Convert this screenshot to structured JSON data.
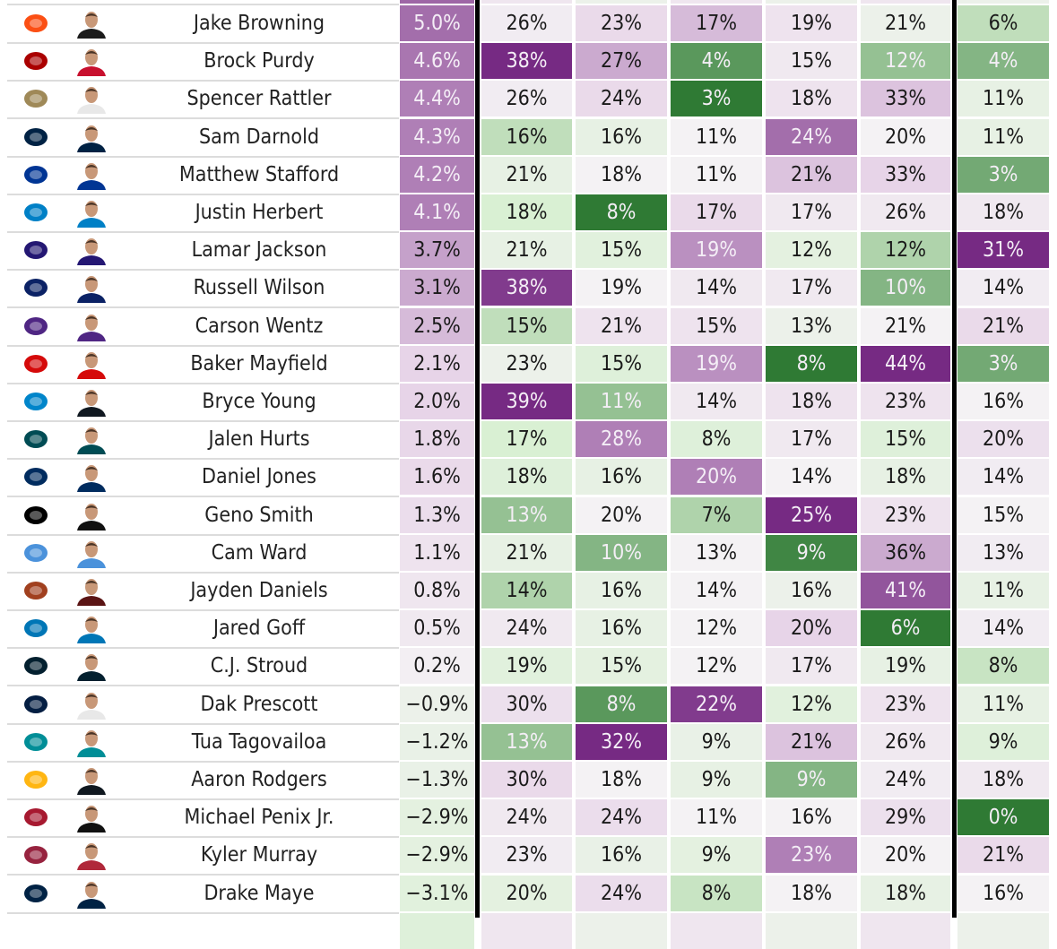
{
  "colors": {
    "purple_dark": "#762a83",
    "purple_light": "#e7d4e8",
    "neutral": "#f4f2f4",
    "green_light": "#d9f0d3",
    "green_dark": "#2f7a34"
  },
  "rows": [
    {
      "team_icon": "bengals-logo",
      "team_color": "#fb4f14",
      "jersey": "#1b1b1b",
      "name": "Jake Browning",
      "pct": "5.0%",
      "pct_level": 2.2,
      "values": [
        "26%",
        "23%",
        "17%",
        "19%",
        "21%",
        "6%"
      ],
      "levels": [
        0.2,
        0.8,
        1.3,
        0.5,
        -0.3,
        -1.3
      ]
    },
    {
      "team_icon": "49ers-logo",
      "team_color": "#aa0000",
      "jersey": "#c8102e",
      "name": "Brock Purdy",
      "pct": "4.6%",
      "pct_level": 2.1,
      "values": [
        "38%",
        "27%",
        "4%",
        "15%",
        "12%",
        "4%"
      ],
      "levels": [
        3,
        1.5,
        -2.5,
        0.3,
        -1.8,
        -2
      ]
    },
    {
      "team_icon": "saints-logo",
      "team_color": "#9f8958",
      "jersey": "#e8e8e8",
      "name": "Spencer Rattler",
      "pct": "4.4%",
      "pct_level": 2.0,
      "values": [
        "26%",
        "24%",
        "3%",
        "18%",
        "33%",
        "11%"
      ],
      "levels": [
        0.2,
        0.8,
        -3,
        0.5,
        1.2,
        -0.5
      ]
    },
    {
      "team_icon": "seahawks-logo",
      "team_color": "#002244",
      "jersey": "#002244",
      "name": "Sam Darnold",
      "pct": "4.3%",
      "pct_level": 2.0,
      "values": [
        "16%",
        "16%",
        "11%",
        "24%",
        "20%",
        "11%"
      ],
      "levels": [
        -1.3,
        -0.5,
        0,
        2.2,
        0,
        -0.5
      ]
    },
    {
      "team_icon": "rams-logo",
      "team_color": "#003594",
      "jersey": "#003594",
      "name": "Matthew Stafford",
      "pct": "4.2%",
      "pct_level": 2.0,
      "values": [
        "21%",
        "18%",
        "11%",
        "21%",
        "33%",
        "3%"
      ],
      "levels": [
        -0.5,
        0,
        0,
        1.2,
        1,
        -2.2
      ]
    },
    {
      "team_icon": "chargers-logo",
      "team_color": "#0080c6",
      "jersey": "#0080c6",
      "name": "Justin Herbert",
      "pct": "4.1%",
      "pct_level": 2.0,
      "values": [
        "18%",
        "8%",
        "17%",
        "17%",
        "26%",
        "18%"
      ],
      "levels": [
        -1,
        -3,
        0.8,
        0.3,
        0.3,
        0.3
      ]
    },
    {
      "team_icon": "ravens-logo",
      "team_color": "#241773",
      "jersey": "#241773",
      "name": "Lamar Jackson",
      "pct": "3.7%",
      "pct_level": 1.6,
      "values": [
        "21%",
        "15%",
        "19%",
        "12%",
        "12%",
        "31%"
      ],
      "levels": [
        -0.5,
        -0.7,
        1.8,
        -0.6,
        -1.5,
        3
      ]
    },
    {
      "team_icon": "giants-logo",
      "team_color": "#0b2265",
      "jersey": "#0b2265",
      "name": "Russell Wilson",
      "pct": "3.1%",
      "pct_level": 1.5,
      "values": [
        "38%",
        "19%",
        "14%",
        "17%",
        "10%",
        "14%"
      ],
      "levels": [
        2.8,
        0,
        0.3,
        0.3,
        -2,
        0.2
      ]
    },
    {
      "team_icon": "vikings-logo",
      "team_color": "#4f2683",
      "jersey": "#4f2683",
      "name": "Carson Wentz",
      "pct": "2.5%",
      "pct_level": 1.3,
      "values": [
        "15%",
        "21%",
        "15%",
        "13%",
        "21%",
        "21%"
      ],
      "levels": [
        -1.3,
        0.5,
        0.5,
        -0.3,
        0,
        0.8
      ]
    },
    {
      "team_icon": "buccaneers-logo",
      "team_color": "#d50a0a",
      "jersey": "#d50a0a",
      "name": "Baker Mayfield",
      "pct": "2.1%",
      "pct_level": 1.0,
      "values": [
        "23%",
        "15%",
        "19%",
        "8%",
        "44%",
        "3%"
      ],
      "levels": [
        -0.3,
        -0.8,
        1.8,
        -3,
        3,
        -2.2
      ]
    },
    {
      "team_icon": "panthers-logo",
      "team_color": "#0085ca",
      "jersey": "#101820",
      "name": "Bryce Young",
      "pct": "2.0%",
      "pct_level": 1.0,
      "values": [
        "39%",
        "11%",
        "14%",
        "18%",
        "23%",
        "16%"
      ],
      "levels": [
        3,
        -1.8,
        0.3,
        0.5,
        0.5,
        0
      ]
    },
    {
      "team_icon": "eagles-logo",
      "team_color": "#004c54",
      "jersey": "#004c54",
      "name": "Jalen Hurts",
      "pct": "1.8%",
      "pct_level": 0.9,
      "values": [
        "17%",
        "28%",
        "8%",
        "17%",
        "15%",
        "20%"
      ],
      "levels": [
        -1,
        2,
        -0.8,
        0.3,
        -0.8,
        0.6
      ]
    },
    {
      "team_icon": "colts-logo",
      "team_color": "#002c5f",
      "jersey": "#002c5f",
      "name": "Daniel Jones",
      "pct": "1.6%",
      "pct_level": 0.8,
      "values": [
        "18%",
        "16%",
        "20%",
        "14%",
        "18%",
        "14%"
      ],
      "levels": [
        -0.8,
        -0.5,
        2,
        0,
        -0.5,
        0.2
      ]
    },
    {
      "team_icon": "raiders-logo",
      "team_color": "#000000",
      "jersey": "#111111",
      "name": "Geno Smith",
      "pct": "1.3%",
      "pct_level": 0.7,
      "values": [
        "13%",
        "20%",
        "7%",
        "25%",
        "23%",
        "15%"
      ],
      "levels": [
        -1.8,
        0,
        -1.5,
        3,
        0.5,
        0
      ]
    },
    {
      "team_icon": "titans-logo",
      "team_color": "#4b92db",
      "jersey": "#4b92db",
      "name": "Cam Ward",
      "pct": "1.1%",
      "pct_level": 0.5,
      "values": [
        "21%",
        "10%",
        "13%",
        "9%",
        "36%",
        "13%"
      ],
      "levels": [
        -0.5,
        -2,
        0,
        -2.8,
        1.5,
        0.2
      ]
    },
    {
      "team_icon": "commanders-logo",
      "team_color": "#a1401f",
      "jersey": "#5a1414",
      "name": "Jayden Daniels",
      "pct": "0.8%",
      "pct_level": 0.4,
      "values": [
        "14%",
        "16%",
        "14%",
        "16%",
        "41%",
        "11%"
      ],
      "levels": [
        -1.5,
        -0.5,
        0,
        -0.3,
        2.5,
        -0.5
      ]
    },
    {
      "team_icon": "lions-logo",
      "team_color": "#0076b6",
      "jersey": "#0076b6",
      "name": "Jared Goff",
      "pct": "0.5%",
      "pct_level": 0.3,
      "values": [
        "24%",
        "16%",
        "12%",
        "20%",
        "6%",
        "14%"
      ],
      "levels": [
        0.3,
        -0.5,
        0,
        1,
        -3,
        0.2
      ]
    },
    {
      "team_icon": "texans-logo",
      "team_color": "#03202f",
      "jersey": "#03202f",
      "name": "C.J. Stroud",
      "pct": "0.2%",
      "pct_level": 0.1,
      "values": [
        "19%",
        "15%",
        "12%",
        "17%",
        "19%",
        "8%"
      ],
      "levels": [
        -0.7,
        -0.6,
        0,
        0.3,
        -0.5,
        -1.2
      ]
    },
    {
      "team_icon": "cowboys-logo",
      "team_color": "#041e42",
      "jersey": "#e8e8e8",
      "name": "Dak Prescott",
      "pct": "−0.9%",
      "pct_level": -0.3,
      "values": [
        "30%",
        "8%",
        "22%",
        "12%",
        "23%",
        "11%"
      ],
      "levels": [
        0.6,
        -2.5,
        2.8,
        -0.7,
        0.5,
        -0.5
      ]
    },
    {
      "team_icon": "dolphins-logo",
      "team_color": "#008e97",
      "jersey": "#008e97",
      "name": "Tua Tagovailoa",
      "pct": "−1.2%",
      "pct_level": -0.4,
      "values": [
        "13%",
        "32%",
        "9%",
        "21%",
        "26%",
        "9%"
      ],
      "levels": [
        -1.8,
        3,
        -0.4,
        1.2,
        0.3,
        -0.8
      ]
    },
    {
      "team_icon": "steelers-logo",
      "team_color": "#ffb612",
      "jersey": "#101820",
      "name": "Aaron Rodgers",
      "pct": "−1.3%",
      "pct_level": -0.4,
      "values": [
        "30%",
        "18%",
        "9%",
        "9%",
        "24%",
        "18%"
      ],
      "levels": [
        0.8,
        0,
        -0.5,
        -2,
        0.2,
        0.3
      ]
    },
    {
      "team_icon": "falcons-logo",
      "team_color": "#a71930",
      "jersey": "#111111",
      "name": "Michael Penix Jr.",
      "pct": "−2.9%",
      "pct_level": -0.6,
      "values": [
        "24%",
        "24%",
        "11%",
        "16%",
        "29%",
        "0%"
      ],
      "levels": [
        0.3,
        0.7,
        0,
        0,
        0.6,
        -3
      ]
    },
    {
      "team_icon": "cardinals-logo",
      "team_color": "#97233f",
      "jersey": "#b0283a",
      "name": "Kyler Murray",
      "pct": "−2.9%",
      "pct_level": -0.6,
      "values": [
        "23%",
        "16%",
        "9%",
        "23%",
        "20%",
        "21%"
      ],
      "levels": [
        0.2,
        -0.4,
        -0.6,
        2,
        0,
        0.8
      ]
    },
    {
      "team_icon": "patriots-logo",
      "team_color": "#002244",
      "jersey": "#002244",
      "name": "Drake Maye",
      "pct": "−3.1%",
      "pct_level": -0.7,
      "values": [
        "20%",
        "24%",
        "8%",
        "18%",
        "18%",
        "16%"
      ],
      "levels": [
        -0.6,
        0.7,
        -1.2,
        0,
        -0.5,
        0
      ]
    }
  ]
}
